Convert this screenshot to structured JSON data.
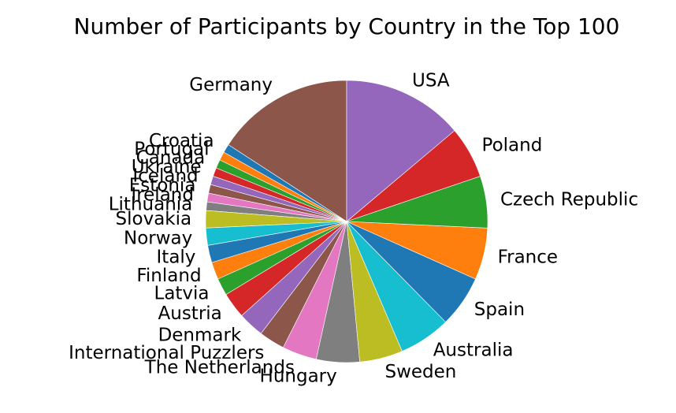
{
  "chart_data": {
    "type": "pie",
    "title": "Number of Participants by Country in the Top 100",
    "start_angle_deg": 90,
    "direction": "counterclockwise",
    "legend": "none",
    "slices": [
      {
        "label": "Germany",
        "value": 16,
        "color": "#8c564b"
      },
      {
        "label": "Croatia",
        "value": 1,
        "color": "#1f77b4"
      },
      {
        "label": "Portugal",
        "value": 1,
        "color": "#ff7f0e"
      },
      {
        "label": "Canada",
        "value": 1,
        "color": "#2ca02c"
      },
      {
        "label": "Ukraine",
        "value": 1,
        "color": "#d62728"
      },
      {
        "label": "Iceland",
        "value": 1,
        "color": "#9467bd"
      },
      {
        "label": "Estonia",
        "value": 1,
        "color": "#8c564b"
      },
      {
        "label": "Ireland",
        "value": 1,
        "color": "#e377c2"
      },
      {
        "label": "Lithuania",
        "value": 1,
        "color": "#7f7f7f"
      },
      {
        "label": "Slovakia",
        "value": 2,
        "color": "#bcbd22"
      },
      {
        "label": "Norway",
        "value": 2,
        "color": "#17becf"
      },
      {
        "label": "Italy",
        "value": 2,
        "color": "#1f77b4"
      },
      {
        "label": "Finland",
        "value": 2,
        "color": "#ff7f0e"
      },
      {
        "label": "Latvia",
        "value": 2,
        "color": "#2ca02c"
      },
      {
        "label": "Austria",
        "value": 3,
        "color": "#d62728"
      },
      {
        "label": "Denmark",
        "value": 3,
        "color": "#9467bd"
      },
      {
        "label": "International Puzzlers",
        "value": 3,
        "color": "#8c564b"
      },
      {
        "label": "The Netherlands",
        "value": 4,
        "color": "#e377c2"
      },
      {
        "label": "Hungary",
        "value": 5,
        "color": "#7f7f7f"
      },
      {
        "label": "Sweden",
        "value": 5,
        "color": "#bcbd22"
      },
      {
        "label": "Australia",
        "value": 6,
        "color": "#17becf"
      },
      {
        "label": "Spain",
        "value": 6,
        "color": "#1f77b4"
      },
      {
        "label": "France",
        "value": 6,
        "color": "#ff7f0e"
      },
      {
        "label": "Czech Republic",
        "value": 6,
        "color": "#2ca02c"
      },
      {
        "label": "Poland",
        "value": 6,
        "color": "#d62728"
      },
      {
        "label": "USA",
        "value": 14,
        "color": "#9467bd"
      }
    ]
  }
}
